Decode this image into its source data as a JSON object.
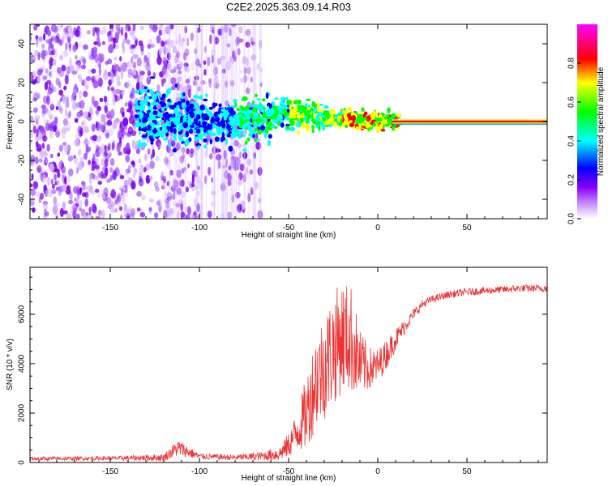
{
  "figure": {
    "title": "C2E2.2025.363.09.14.R03"
  },
  "chart_data": [
    {
      "type": "heatmap",
      "xlabel": "Height of straight line (km)",
      "ylabel": "Frequency (Hz)",
      "xlim": [
        -195,
        95
      ],
      "ylim": [
        -50,
        50
      ],
      "xticks": [
        -150,
        -100,
        -50,
        0,
        50
      ],
      "yticks": [
        -40,
        -20,
        0,
        20,
        40
      ],
      "ridge_frequency_hz": 0,
      "description_regions": [
        {
          "x_range": [
            -195,
            -70
          ],
          "pattern": "diffuse noise, purple"
        },
        {
          "x_range": [
            -135,
            -60
          ],
          "pattern": "dense blue/purple band around 0 Hz"
        },
        {
          "x_range": [
            -60,
            10
          ],
          "pattern": "cyan/green/yellow band narrowing around 0 Hz"
        },
        {
          "x_range": [
            10,
            95
          ],
          "pattern": "thin red ridge at 0 Hz"
        }
      ],
      "colorbar": {
        "label": "Normalized spectral amplitude",
        "range": [
          0,
          1
        ],
        "ticks": [
          0.0,
          0.2,
          0.4,
          0.6,
          0.8
        ],
        "tick_labels": [
          "0.0",
          "0.2",
          "0.4",
          "0.6",
          "0.8"
        ],
        "colormap": [
          "#ffffff",
          "#8b00ff",
          "#0000ff",
          "#00ffff",
          "#00ff00",
          "#ffff00",
          "#ff0000",
          "#ff00ff"
        ]
      }
    },
    {
      "type": "line",
      "xlabel": "Height of straight line (km)",
      "ylabel": "SNR (10 * v/v)",
      "xlim": [
        -195,
        95
      ],
      "ylim": [
        0,
        7900
      ],
      "xticks": [
        -150,
        -100,
        -50,
        0,
        50
      ],
      "yticks": [
        0,
        2000,
        4000,
        6000
      ],
      "color": "#ee3333",
      "series": [
        {
          "name": "SNR",
          "x": [
            -195,
            -150,
            -120,
            -112,
            -100,
            -80,
            -65,
            -55,
            -50,
            -45,
            -40,
            -35,
            -30,
            -25,
            -20,
            -15,
            -10,
            -5,
            0,
            5,
            10,
            15,
            20,
            25,
            30,
            40,
            50,
            60,
            70,
            80,
            95
          ],
          "y": [
            150,
            170,
            200,
            600,
            250,
            200,
            260,
            350,
            700,
            1300,
            2000,
            3300,
            3900,
            4600,
            5100,
            5000,
            4000,
            3800,
            3900,
            4400,
            5000,
            5500,
            6000,
            6400,
            6600,
            6800,
            6900,
            6950,
            7000,
            7050,
            7050
          ],
          "noise": [
            80,
            80,
            150,
            350,
            120,
            120,
            180,
            300,
            500,
            900,
            1500,
            2000,
            2200,
            2300,
            2300,
            2200,
            1400,
            900,
            700,
            600,
            450,
            300,
            220,
            180,
            150,
            150,
            150,
            150,
            150,
            150,
            150
          ]
        }
      ]
    }
  ]
}
